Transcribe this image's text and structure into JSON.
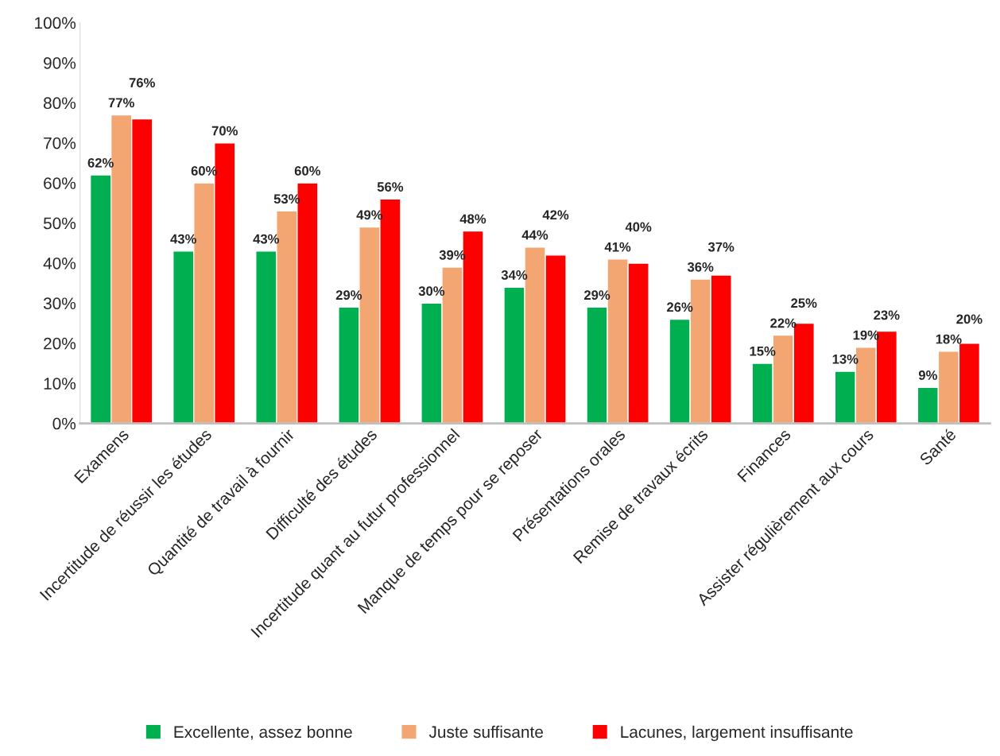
{
  "chart_data": {
    "type": "bar",
    "categories": [
      "Examens",
      "Incertitude de réussir les études",
      "Quantité de travail à fournir",
      "Difficulté des études",
      "Incertitude quant au futur professionnel",
      "Manque de temps pour se reposer",
      "Présentations orales",
      "Remise de travaux écrits",
      "Finances",
      "Assister régulièrement aux cours",
      "Santé"
    ],
    "series": [
      {
        "name": "Excellente, assez bonne",
        "color": "#00b050",
        "values": [
          62,
          43,
          43,
          29,
          30,
          34,
          29,
          26,
          15,
          13,
          9
        ],
        "value_labels": [
          "62%",
          "43%",
          "43%",
          "29%",
          "30%",
          "34%",
          "29%",
          "26%",
          "15%",
          "13%",
          "9%"
        ]
      },
      {
        "name": "Juste suffisante",
        "color": "#f4a672",
        "values": [
          77,
          60,
          53,
          49,
          39,
          44,
          41,
          36,
          22,
          19,
          18
        ],
        "value_labels": [
          "77%",
          "60%",
          "53%",
          "49%",
          "39%",
          "44%",
          "41%",
          "36%",
          "22%",
          "19%",
          "18%"
        ]
      },
      {
        "name": "Lacunes, largement insuffisante",
        "color": "#ff0000",
        "values": [
          76,
          70,
          60,
          56,
          48,
          42,
          40,
          37,
          25,
          23,
          20
        ],
        "value_labels": [
          "76%",
          "70%",
          "60%",
          "56%",
          "48%",
          "42%",
          "40%",
          "37%",
          "25%",
          "23%",
          "20%"
        ]
      }
    ],
    "ylim": [
      0,
      100
    ],
    "yticks": [
      {
        "value": 0,
        "label": "0%"
      },
      {
        "value": 10,
        "label": "10%"
      },
      {
        "value": 20,
        "label": "20%"
      },
      {
        "value": 30,
        "label": "30%"
      },
      {
        "value": 40,
        "label": "40%"
      },
      {
        "value": 50,
        "label": "50%"
      },
      {
        "value": 60,
        "label": "60%"
      },
      {
        "value": 70,
        "label": "70%"
      },
      {
        "value": 80,
        "label": "80%"
      },
      {
        "value": 90,
        "label": "90%"
      },
      {
        "value": 100,
        "label": "100%"
      }
    ],
    "grid": false,
    "legend": "bottom"
  }
}
